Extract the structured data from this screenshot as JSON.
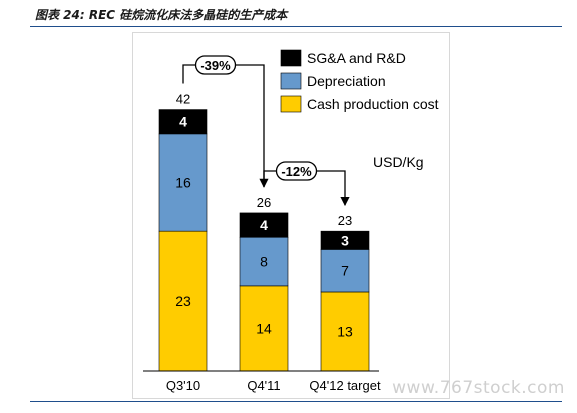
{
  "caption": "图表 24: REC 硅烷流化床法多晶硅的生产成本",
  "watermark": "www.767stock.com",
  "chart_data": {
    "type": "bar",
    "stacked": true,
    "unit_label": "USD/Kg",
    "categories": [
      "Q3'10",
      "Q4'11",
      "Q4'12 target"
    ],
    "series": [
      {
        "name": "Cash production cost",
        "color": "#ffcc00",
        "values": [
          23,
          14,
          13
        ]
      },
      {
        "name": "Depreciation",
        "color": "#6699cc",
        "values": [
          16,
          8,
          7
        ]
      },
      {
        "name": "SG&A and R&D",
        "color": "#000000",
        "values": [
          4,
          4,
          3
        ]
      }
    ],
    "totals": [
      42,
      26,
      23
    ],
    "annotations": [
      {
        "from": 0,
        "to": 1,
        "label": "-39%"
      },
      {
        "from": 1,
        "to": 2,
        "label": "-12%"
      }
    ],
    "legend": [
      {
        "label": "SG&A and R&D",
        "color": "#000000"
      },
      {
        "label": "Depreciation",
        "color": "#6699cc"
      },
      {
        "label": "Cash production cost",
        "color": "#ffcc00"
      }
    ],
    "legend_position": "top-right",
    "grid": false
  }
}
